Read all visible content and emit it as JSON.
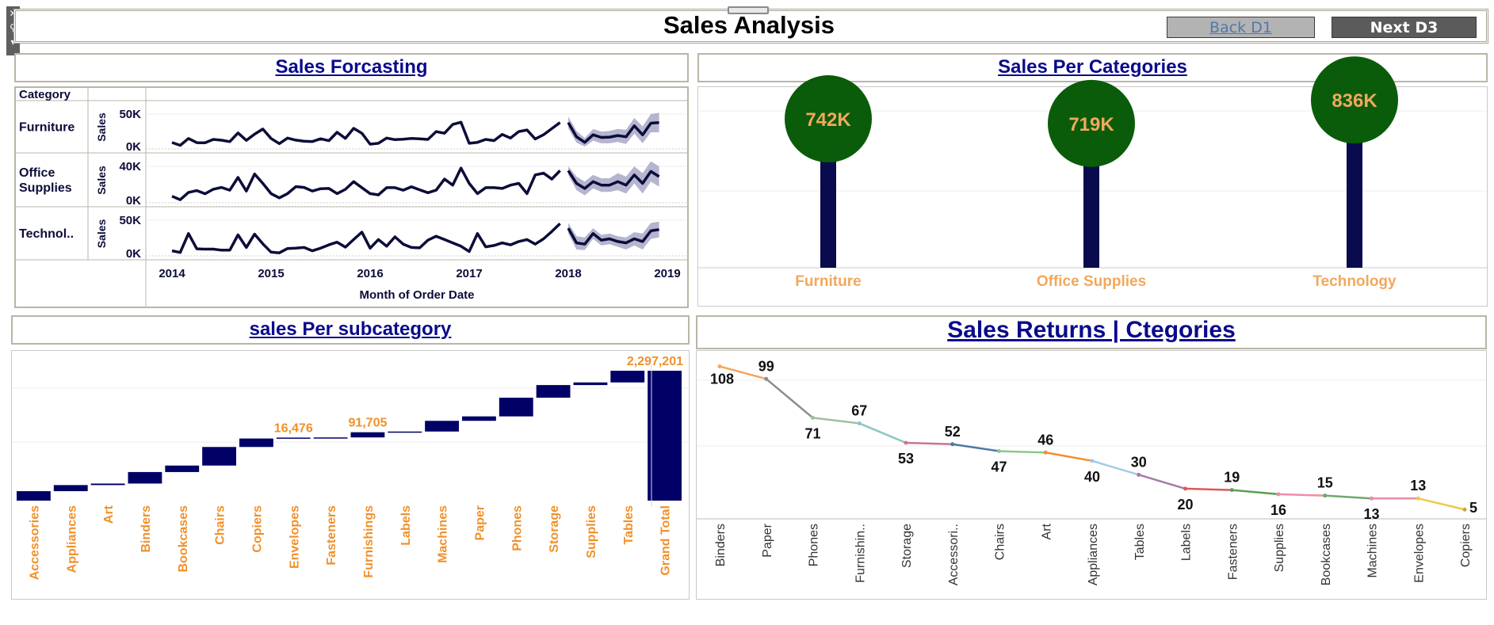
{
  "header": {
    "title": "Sales Analysis",
    "back_label": "Back D1",
    "next_label": "Next D3",
    "colors": {
      "back_bg": "#b3b3b3",
      "back_fg": "#4f79ad",
      "next_bg": "#5b5b5b",
      "next_fg": "#ffffff"
    }
  },
  "toolbar": {
    "close_glyph": "✕",
    "pin_glyph": "⚲",
    "menu_glyph": "▾"
  },
  "panels": {
    "forecast_title": "Sales Forcasting",
    "categories_title": "Sales Per Categories",
    "subcategory_title": "sales Per subcategory",
    "returns_title": "Sales Returns | Ctegories"
  },
  "chart_data": [
    {
      "id": "forecast",
      "type": "line",
      "title": "Sales Forcasting",
      "xlabel": "Month of Order Date",
      "ylabel": "Sales",
      "row_header": "Category",
      "x_ticks": [
        "2014",
        "2015",
        "2016",
        "2017",
        "2018",
        "2019"
      ],
      "x_range": [
        "2014-01",
        "2019-01"
      ],
      "line_color": "#0c0c3a",
      "band_color": "#a8a8c8",
      "series": [
        {
          "name": "Furniture",
          "y_ticks": [
            "50K",
            "0K"
          ],
          "ylim": [
            0,
            50000
          ],
          "actual": [
            6200,
            1800,
            12500,
            6000,
            5700,
            11000,
            9800,
            7600,
            21000,
            9500,
            19000,
            27000,
            12500,
            4500,
            13000,
            9900,
            8200,
            7700,
            12000,
            9000,
            22000,
            12600,
            28000,
            20500,
            3600,
            5000,
            13000,
            10600,
            11200,
            12500,
            11800,
            11000,
            23000,
            20500,
            34000,
            37500,
            5000,
            6500,
            11000,
            9200,
            18700,
            13000,
            23000,
            25500,
            11700,
            18200,
            27500,
            37000
          ],
          "forecast": [
            37000,
            15000,
            6500,
            18000,
            14000,
            14500,
            17000,
            15000,
            32000,
            18000,
            36000,
            37000
          ],
          "forecast_low": [
            28000,
            6000,
            0,
            9000,
            5000,
            5000,
            7000,
            4000,
            20000,
            5000,
            22000,
            22000
          ],
          "forecast_high": [
            46000,
            24000,
            13000,
            27000,
            23000,
            24000,
            27000,
            26000,
            44000,
            31000,
            50000,
            52000
          ]
        },
        {
          "name": "Office Supplies",
          "y_ticks": [
            "40K",
            "0K"
          ],
          "ylim": [
            0,
            40000
          ],
          "actual": [
            4900,
            800,
            9400,
            11500,
            7800,
            13100,
            15300,
            12000,
            27000,
            11000,
            31000,
            20000,
            8000,
            3000,
            8000,
            16200,
            15300,
            11000,
            13800,
            14000,
            8000,
            13000,
            22000,
            15000,
            8000,
            6500,
            15000,
            15000,
            12000,
            16000,
            12500,
            9000,
            12000,
            25000,
            18000,
            38000,
            20000,
            8000,
            15000,
            15000,
            14000,
            18000,
            20000,
            8000,
            30000,
            32000,
            25000,
            35000
          ],
          "forecast": [
            35000,
            20000,
            14000,
            22000,
            18000,
            18000,
            22000,
            18000,
            30000,
            20000,
            34000,
            28000
          ],
          "forecast_low": [
            30000,
            12000,
            6000,
            14000,
            10000,
            10000,
            12000,
            8000,
            20000,
            8000,
            22000,
            16000
          ],
          "forecast_high": [
            40000,
            28000,
            22000,
            30000,
            26000,
            26000,
            32000,
            28000,
            40000,
            32000,
            46000,
            40000
          ]
        },
        {
          "name": "Technol..",
          "y_ticks": [
            "50K",
            "0K"
          ],
          "ylim": [
            0,
            50000
          ],
          "actual": [
            4000,
            1500,
            30000,
            7000,
            6500,
            6500,
            5000,
            5000,
            28000,
            9000,
            29000,
            14500,
            2000,
            1000,
            7500,
            8000,
            9000,
            4000,
            8000,
            13000,
            17000,
            9500,
            21000,
            32000,
            8000,
            21000,
            11000,
            25000,
            14000,
            9000,
            8500,
            20000,
            26000,
            21000,
            16000,
            11000,
            3000,
            30000,
            10000,
            12000,
            16000,
            13000,
            18000,
            21000,
            14000,
            22000,
            33000,
            45000
          ],
          "forecast": [
            38000,
            16000,
            14000,
            30000,
            20000,
            22000,
            18000,
            16000,
            22000,
            18000,
            34000,
            36000
          ],
          "forecast_low": [
            30000,
            6000,
            5000,
            22000,
            12000,
            14000,
            10000,
            6000,
            12000,
            6000,
            22000,
            24000
          ],
          "forecast_high": [
            46000,
            26000,
            24000,
            38000,
            28000,
            30000,
            26000,
            24000,
            32000,
            30000,
            46000,
            48000
          ]
        }
      ]
    },
    {
      "id": "categories",
      "type": "bar",
      "title": "Sales Per Categories",
      "categories": [
        "Furniture",
        "Office Supplies",
        "Technology"
      ],
      "values": [
        742000,
        719000,
        836000
      ],
      "labels": [
        "742K",
        "719K",
        "836K"
      ],
      "ylim": [
        0,
        900000
      ],
      "bar_color": "#0a0a4e",
      "circle_color": "#0a5c0a",
      "label_color": "#f2a85c"
    },
    {
      "id": "subcategory",
      "type": "bar",
      "title": "sales Per subcategory",
      "style": "waterfall",
      "categories": [
        "Accessories",
        "Appliances",
        "Art",
        "Binders",
        "Bookcases",
        "Chairs",
        "Copiers",
        "Envelopes",
        "Fasteners",
        "Furnishings",
        "Labels",
        "Machines",
        "Paper",
        "Phones",
        "Storage",
        "Supplies",
        "Tables",
        "Grand Total"
      ],
      "values": [
        167380,
        107532,
        27119,
        203413,
        114880,
        328449,
        149528,
        16476,
        3024,
        91705,
        12486,
        189239,
        78479,
        330007,
        223844,
        46674,
        206966,
        2297201
      ],
      "data_labels": {
        "Envelopes": "16,476",
        "Furnishings": "91,705",
        "Grand Total": "2,297,201"
      },
      "ylim": [
        0,
        2297201
      ],
      "bar_color": "#000066",
      "label_color": "#f0902a"
    },
    {
      "id": "returns",
      "type": "line",
      "title": "Sales Returns | Ctegories",
      "categories": [
        "Binders",
        "Paper",
        "Phones",
        "Furnishin..",
        "Storage",
        "Accessori..",
        "Chairs",
        "Art",
        "Appliances",
        "Tables",
        "Labels",
        "Fasteners",
        "Supplies",
        "Bookcases",
        "Machines",
        "Envelopes",
        "Copiers"
      ],
      "values": [
        108,
        99,
        71,
        67,
        53,
        52,
        47,
        46,
        40,
        30,
        20,
        19,
        16,
        15,
        13,
        13,
        5
      ],
      "ylim": [
        0,
        110
      ],
      "colors": [
        "#f2a85c",
        "#8c8c8c",
        "#9fbfa0",
        "#8dc6bf",
        "#c77595",
        "#4e79a7",
        "#8cc78c",
        "#f28e2b",
        "#a0cbe8",
        "#a47aa7",
        "#e15759",
        "#59a14f",
        "#f08ca8",
        "#6fa86f",
        "#e88ca8",
        "#edc948",
        "#c8a43c"
      ]
    }
  ]
}
